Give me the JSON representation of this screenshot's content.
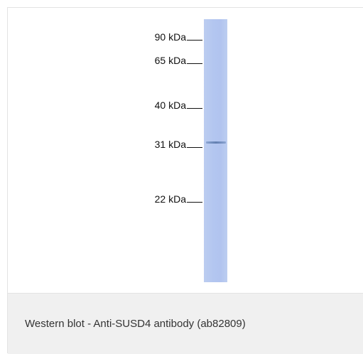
{
  "blot": {
    "markers": [
      {
        "label": "90 kDa"
      },
      {
        "label": "65 kDa"
      },
      {
        "label": "40 kDa"
      },
      {
        "label": "31 kDa"
      },
      {
        "label": "22 kDa"
      }
    ]
  },
  "caption": "Western blot - Anti-SUSD4 antibody (ab82809)",
  "colors": {
    "lane": "#b3c6f0",
    "band": "#6e8cbe",
    "caption_bg": "#f0f0f0"
  }
}
